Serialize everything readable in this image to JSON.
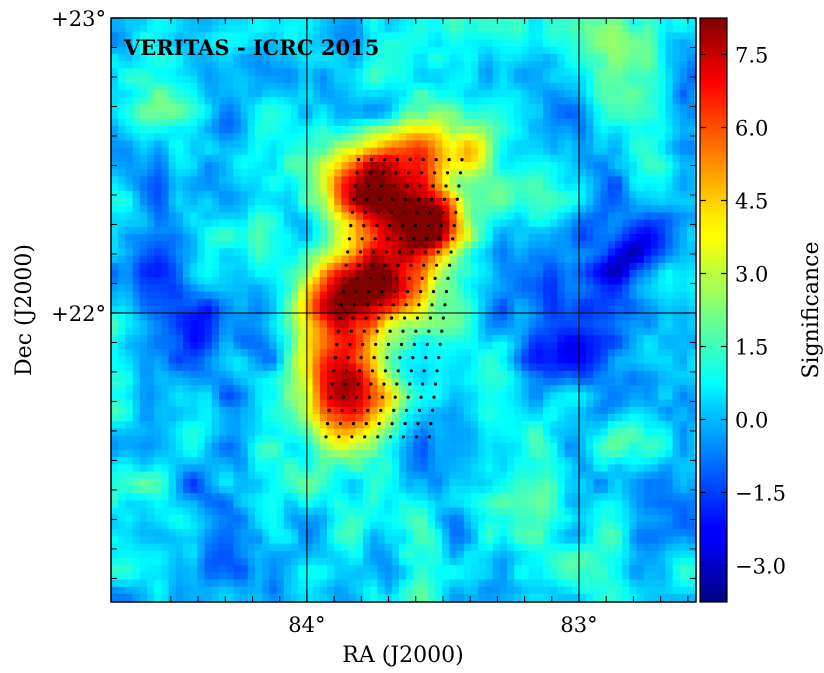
{
  "chart_data": {
    "type": "heatmap",
    "title": "VERITAS - ICRC 2015",
    "xlabel": "RA (J2000)",
    "ylabel": "Dec (J2000)",
    "colorbar_label": "Significance",
    "colormap": "jet",
    "xlim": [
      84.72,
      82.57
    ],
    "ylim": [
      21.02,
      23.0
    ],
    "xticks": [
      {
        "value": 84.0,
        "label": "84°"
      },
      {
        "value": 83.0,
        "label": "83°"
      }
    ],
    "yticks": [
      {
        "value": 23.0,
        "label": "+23°"
      },
      {
        "value": 22.0,
        "label": "+22°"
      }
    ],
    "grid": true,
    "colorbar_range": [
      -3.75,
      8.25
    ],
    "colorbar_ticks": [
      {
        "value": 7.5,
        "label": "7.5"
      },
      {
        "value": 6.0,
        "label": "6.0"
      },
      {
        "value": 4.5,
        "label": "4.5"
      },
      {
        "value": 3.0,
        "label": "3.0"
      },
      {
        "value": 1.5,
        "label": "1.5"
      },
      {
        "value": 0.0,
        "label": "0.0"
      },
      {
        "value": -1.5,
        "label": "−1.5"
      },
      {
        "value": -3.0,
        "label": "−3.0"
      }
    ],
    "background_significance": 0.3,
    "hotspots": [
      {
        "ra": 83.78,
        "dec": 22.42,
        "peak": 7.6,
        "sigma": 0.11
      },
      {
        "ra": 83.55,
        "dec": 22.32,
        "peak": 8.0,
        "sigma": 0.09
      },
      {
        "ra": 83.88,
        "dec": 22.05,
        "peak": 7.2,
        "sigma": 0.11
      },
      {
        "ra": 83.86,
        "dec": 21.72,
        "peak": 7.0,
        "sigma": 0.12
      },
      {
        "ra": 83.68,
        "dec": 22.1,
        "peak": 5.5,
        "sigma": 0.12
      },
      {
        "ra": 83.58,
        "dec": 22.55,
        "peak": 4.5,
        "sigma": 0.09
      },
      {
        "ra": 83.4,
        "dec": 22.55,
        "peak": 3.5,
        "sigma": 0.06
      },
      {
        "ra": 84.5,
        "dec": 22.72,
        "peak": 1.5,
        "sigma": 0.12
      },
      {
        "ra": 82.9,
        "dec": 22.9,
        "peak": 1.8,
        "sigma": 0.1
      },
      {
        "ra": 83.1,
        "dec": 21.35,
        "peak": 1.5,
        "sigma": 0.08
      },
      {
        "ra": 84.35,
        "dec": 22.55,
        "peak": -1.2,
        "sigma": 0.1
      },
      {
        "ra": 84.55,
        "dec": 22.15,
        "peak": -2.5,
        "sigma": 0.1
      },
      {
        "ra": 82.8,
        "dec": 22.2,
        "peak": -2.8,
        "sigma": 0.1
      },
      {
        "ra": 83.05,
        "dec": 21.95,
        "peak": -2.0,
        "sigma": 0.12
      },
      {
        "ra": 84.3,
        "dec": 21.95,
        "peak": -1.8,
        "sigma": 0.12
      },
      {
        "ra": 83.45,
        "dec": 21.55,
        "peak": -1.5,
        "sigma": 0.09
      },
      {
        "ra": 84.3,
        "dec": 21.3,
        "peak": -1.2,
        "sigma": 0.1
      }
    ],
    "marked_region": {
      "description": "grid of dots",
      "corners": [
        {
          "ra": 83.81,
          "dec": 22.52
        },
        {
          "ra": 83.43,
          "dec": 22.52
        },
        {
          "ra": 83.55,
          "dec": 21.58
        },
        {
          "ra": 83.93,
          "dec": 21.58
        }
      ],
      "rows": 22,
      "cols": 9
    }
  }
}
